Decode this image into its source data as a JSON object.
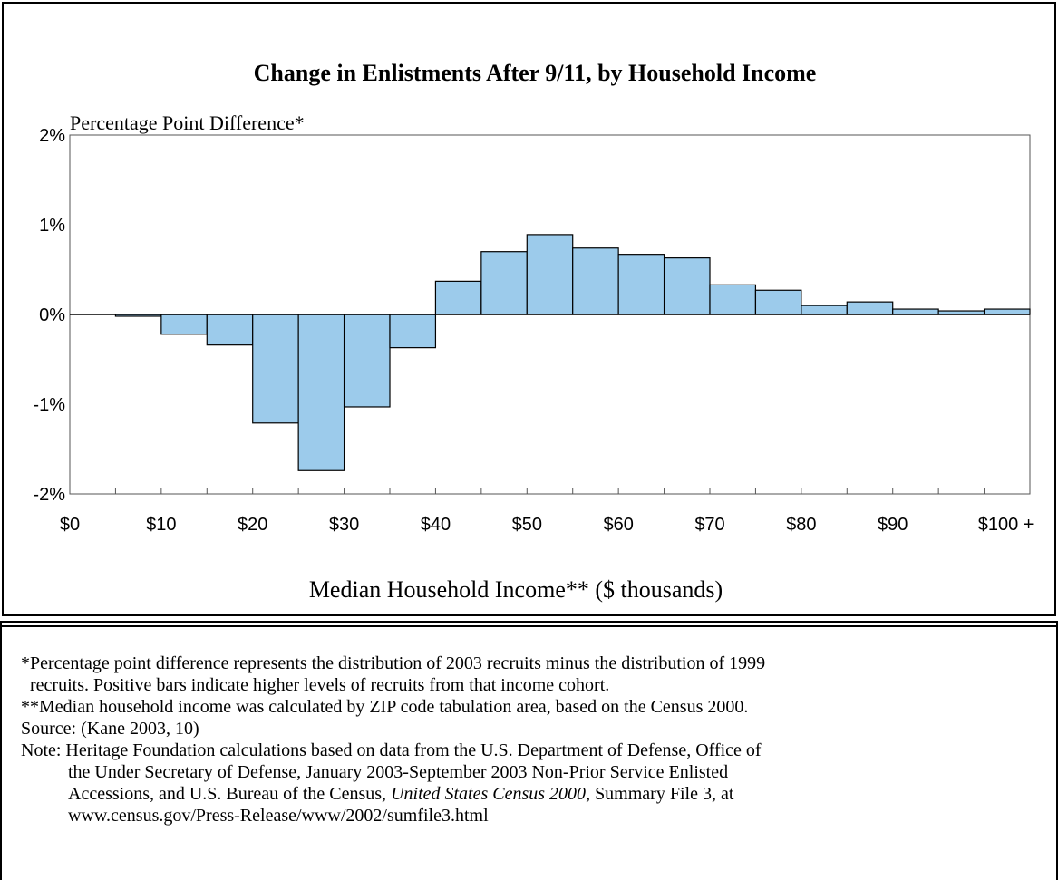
{
  "chart_data": {
    "type": "bar",
    "title": "Change in Enlistments After 9/11, by Household Income",
    "ylabel": "Percentage Point Difference*",
    "xlabel": "Median Household Income** ($ thousands)",
    "ylim": [
      -2,
      2
    ],
    "yticks": [
      "2%",
      "1%",
      "0%",
      "-1%",
      "-2%"
    ],
    "ytick_values": [
      2,
      1,
      0,
      -1,
      -2
    ],
    "xticks": [
      "$0",
      "$10",
      "$20",
      "$30",
      "$40",
      "$50",
      "$60",
      "$70",
      "$80",
      "$90",
      "$100 +"
    ],
    "bin_width": 5,
    "bins": [
      {
        "start": 5,
        "end": 10,
        "value": -0.02
      },
      {
        "start": 10,
        "end": 15,
        "value": -0.22
      },
      {
        "start": 15,
        "end": 20,
        "value": -0.34
      },
      {
        "start": 20,
        "end": 25,
        "value": -1.21
      },
      {
        "start": 25,
        "end": 30,
        "value": -1.74
      },
      {
        "start": 30,
        "end": 35,
        "value": -1.03
      },
      {
        "start": 35,
        "end": 40,
        "value": -0.37
      },
      {
        "start": 40,
        "end": 45,
        "value": 0.37
      },
      {
        "start": 45,
        "end": 50,
        "value": 0.7
      },
      {
        "start": 50,
        "end": 55,
        "value": 0.89
      },
      {
        "start": 55,
        "end": 60,
        "value": 0.74
      },
      {
        "start": 60,
        "end": 65,
        "value": 0.67
      },
      {
        "start": 65,
        "end": 70,
        "value": 0.63
      },
      {
        "start": 70,
        "end": 75,
        "value": 0.33
      },
      {
        "start": 75,
        "end": 80,
        "value": 0.27
      },
      {
        "start": 80,
        "end": 85,
        "value": 0.1
      },
      {
        "start": 85,
        "end": 90,
        "value": 0.14
      },
      {
        "start": 90,
        "end": 95,
        "value": 0.06
      },
      {
        "start": 95,
        "end": 100,
        "value": 0.04
      },
      {
        "start": 100,
        "end": 105,
        "value": 0.06
      }
    ],
    "xlim": [
      0,
      105
    ],
    "bar_color": "#9ccbeb",
    "grid": false
  },
  "notes": {
    "line1": "*Percentage point difference represents the distribution of 2003 recruits minus the distribution of 1999",
    "line2": "recruits.  Positive bars indicate higher levels of recruits from that income cohort.",
    "line3": "**Median household income was calculated by ZIP code tabulation area, based on the Census 2000.",
    "line4": "Source: (Kane 2003, 10)",
    "line5": "Note: Heritage Foundation calculations based on data from the U.S. Department of Defense, Office of",
    "line6": "the Under Secretary of Defense, January 2003-September 2003 Non-Prior Service Enlisted",
    "line7a": "Accessions, and U.S. Bureau of the Census, ",
    "line7b": "United States Census 2000",
    "line7c": ", Summary File 3, at",
    "line8": "www.census.gov/Press-Release/www/2002/sumfile3.html"
  }
}
